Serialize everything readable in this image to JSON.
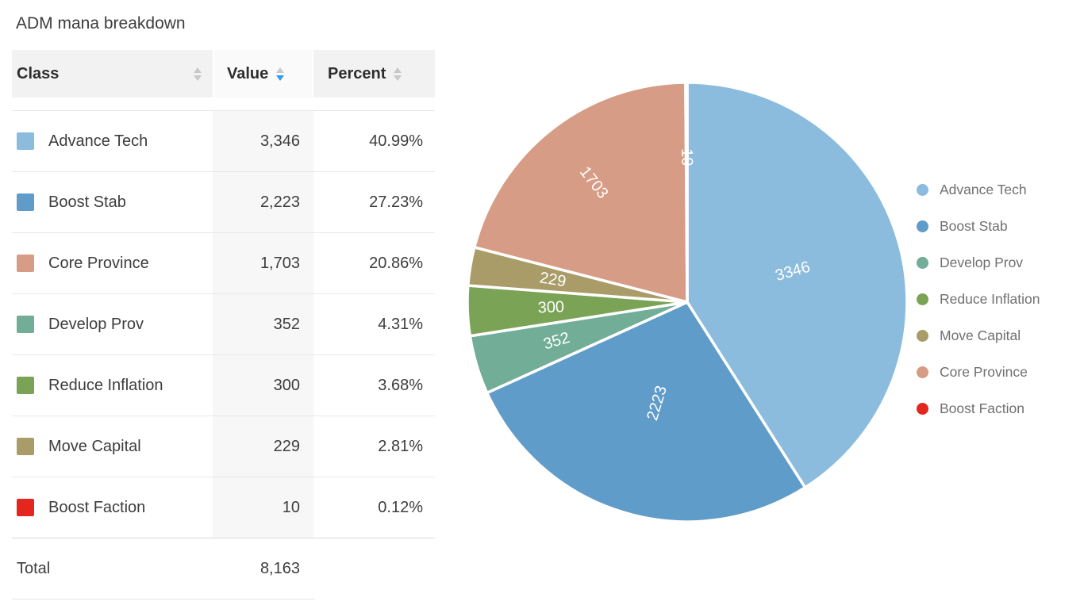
{
  "title": "ADM mana breakdown",
  "table": {
    "columns": [
      {
        "label": "Class",
        "sort": "none"
      },
      {
        "label": "Value",
        "sort": "desc"
      },
      {
        "label": "Percent",
        "sort": "none"
      }
    ],
    "rows": [
      {
        "class": "Advance Tech",
        "value": "3,346",
        "percent": "40.99%",
        "color": "#8bbcde"
      },
      {
        "class": "Boost Stab",
        "value": "2,223",
        "percent": "27.23%",
        "color": "#609cc9"
      },
      {
        "class": "Core Province",
        "value": "1,703",
        "percent": "20.86%",
        "color": "#d79c86"
      },
      {
        "class": "Develop Prov",
        "value": "352",
        "percent": "4.31%",
        "color": "#71ad97"
      },
      {
        "class": "Reduce Inflation",
        "value": "300",
        "percent": "3.68%",
        "color": "#7ba355"
      },
      {
        "class": "Move Capital",
        "value": "229",
        "percent": "2.81%",
        "color": "#a99c68"
      },
      {
        "class": "Boost Faction",
        "value": "10",
        "percent": "0.12%",
        "color": "#e5261e"
      }
    ],
    "total_label": "Total",
    "total_value": "8,163"
  },
  "chart_data": {
    "type": "pie",
    "title": "ADM mana breakdown",
    "total": 8163,
    "start_angle": "12-oclock",
    "direction": "clockwise",
    "legend_position": "right",
    "slice_labels": "values, white, rotated radially, inside slices",
    "series": [
      {
        "name": "Advance Tech",
        "value": 3346,
        "percent": 40.99,
        "color": "#8bbcde",
        "label_r": 0.5
      },
      {
        "name": "Boost Stab",
        "value": 2223,
        "percent": 27.23,
        "color": "#609cc9",
        "label_r": 0.48
      },
      {
        "name": "Develop Prov",
        "value": 352,
        "percent": 4.31,
        "color": "#71ad97",
        "label_r": 0.62
      },
      {
        "name": "Reduce Inflation",
        "value": 300,
        "percent": 3.68,
        "color": "#7ba355",
        "label_r": 0.62
      },
      {
        "name": "Move Capital",
        "value": 229,
        "percent": 2.81,
        "color": "#a99c68",
        "label_r": 0.62
      },
      {
        "name": "Core Province",
        "value": 1703,
        "percent": 20.86,
        "color": "#d79c86",
        "label_r": 0.69
      },
      {
        "name": "Boost Faction",
        "value": 10,
        "percent": 0.12,
        "color": "#e5261e",
        "label_r": 0.66
      }
    ]
  },
  "colors": {
    "sort_active": "#2d9cf4",
    "sort_inactive": "#c9c9c9",
    "pie_divider": "#ffffff",
    "pie_label_text": "#ffffff"
  }
}
